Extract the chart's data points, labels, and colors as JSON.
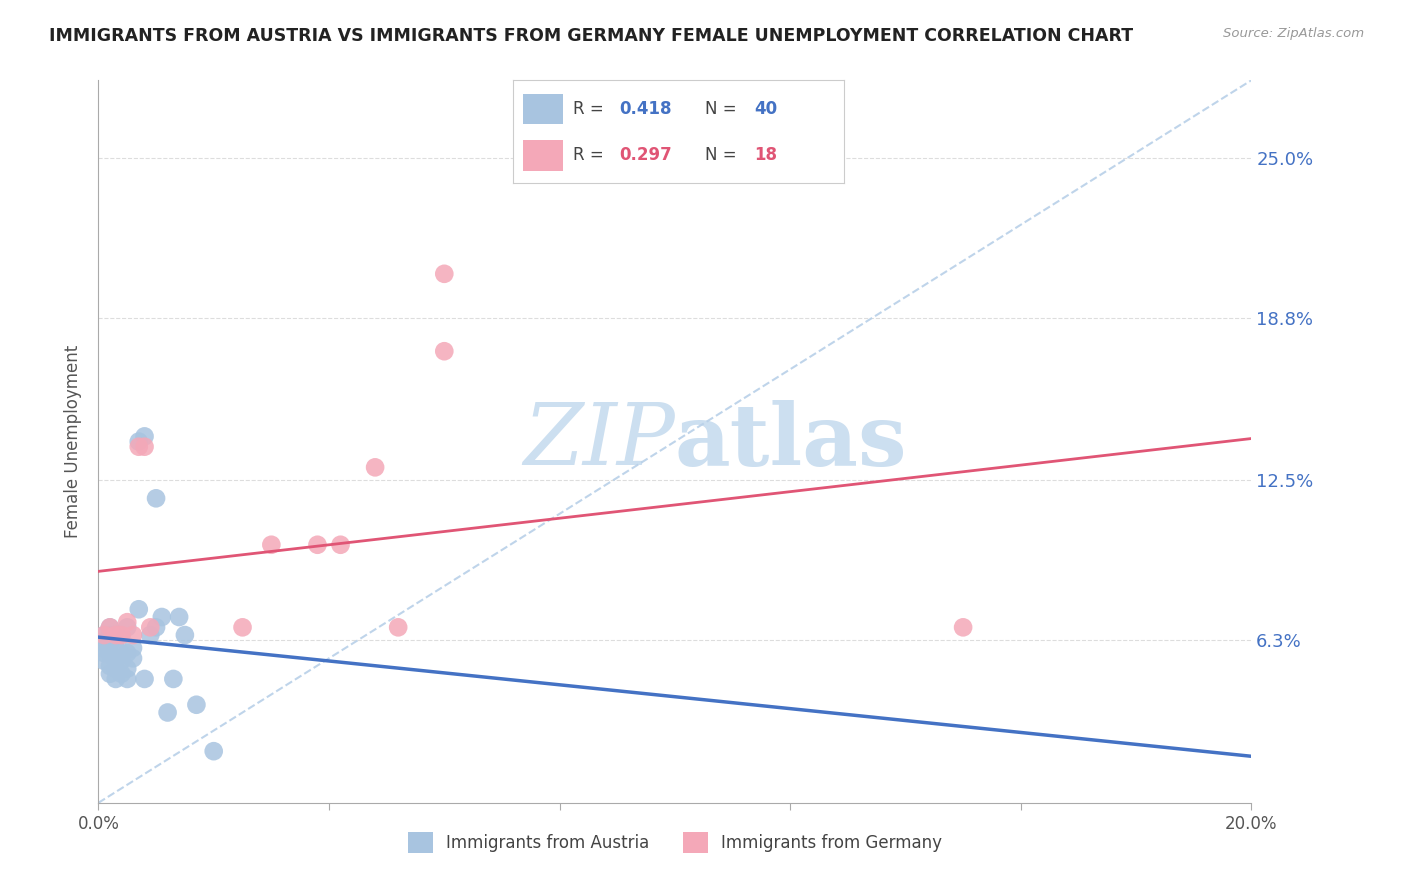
{
  "title": "IMMIGRANTS FROM AUSTRIA VS IMMIGRANTS FROM GERMANY FEMALE UNEMPLOYMENT CORRELATION CHART",
  "source_text": "Source: ZipAtlas.com",
  "ylabel": "Female Unemployment",
  "xlim": [
    0.0,
    0.2
  ],
  "ylim": [
    0.0,
    0.28
  ],
  "xtick_vals": [
    0.0,
    0.04,
    0.08,
    0.12,
    0.16,
    0.2
  ],
  "xtick_labels": [
    "0.0%",
    "",
    "",
    "",
    "",
    "20.0%"
  ],
  "ytick_vals": [
    0.063,
    0.125,
    0.188,
    0.25
  ],
  "ytick_labels": [
    "6.3%",
    "12.5%",
    "18.8%",
    "25.0%"
  ],
  "series1_label": "Immigrants from Austria",
  "series2_label": "Immigrants from Germany",
  "series1_color": "#a8c4e0",
  "series2_color": "#f4a8b8",
  "series1_line_color": "#4472c4",
  "series2_line_color": "#e05575",
  "diagonal_color": "#b8d0e8",
  "R1": 0.418,
  "N1": 40,
  "R2": 0.297,
  "N2": 18,
  "series1_x": [
    0.001,
    0.001,
    0.001,
    0.001,
    0.001,
    0.002,
    0.002,
    0.002,
    0.002,
    0.002,
    0.002,
    0.003,
    0.003,
    0.003,
    0.003,
    0.003,
    0.004,
    0.004,
    0.004,
    0.004,
    0.005,
    0.005,
    0.005,
    0.005,
    0.006,
    0.006,
    0.007,
    0.007,
    0.008,
    0.008,
    0.009,
    0.01,
    0.01,
    0.011,
    0.012,
    0.013,
    0.014,
    0.015,
    0.017,
    0.02
  ],
  "series1_y": [
    0.055,
    0.058,
    0.06,
    0.062,
    0.065,
    0.05,
    0.053,
    0.058,
    0.062,
    0.065,
    0.068,
    0.048,
    0.052,
    0.055,
    0.06,
    0.065,
    0.05,
    0.055,
    0.058,
    0.065,
    0.048,
    0.052,
    0.058,
    0.068,
    0.056,
    0.06,
    0.075,
    0.14,
    0.142,
    0.048,
    0.065,
    0.118,
    0.068,
    0.072,
    0.035,
    0.048,
    0.072,
    0.065,
    0.038,
    0.02
  ],
  "series2_x": [
    0.001,
    0.002,
    0.003,
    0.004,
    0.005,
    0.006,
    0.007,
    0.008,
    0.009,
    0.025,
    0.03,
    0.038,
    0.042,
    0.048,
    0.052,
    0.06,
    0.15,
    0.06
  ],
  "series2_y": [
    0.065,
    0.068,
    0.065,
    0.065,
    0.07,
    0.065,
    0.138,
    0.138,
    0.068,
    0.068,
    0.1,
    0.1,
    0.1,
    0.13,
    0.068,
    0.205,
    0.068,
    0.175
  ],
  "watermark_zip": "ZIP",
  "watermark_atlas": "atlas",
  "watermark_color": "#ccdff0"
}
